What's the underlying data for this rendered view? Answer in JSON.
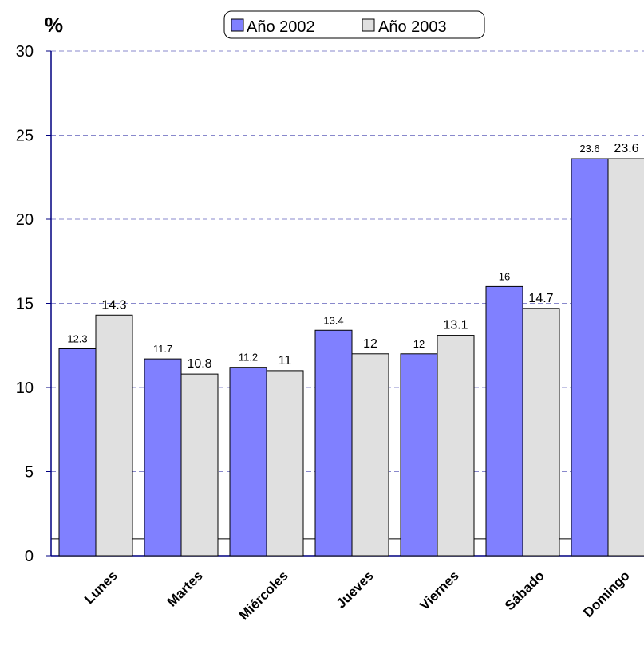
{
  "chart_data": {
    "type": "bar",
    "unit_label": "%",
    "categories": [
      "Lunes",
      "Martes",
      "Miércoles",
      "Jueves",
      "Viernes",
      "Sábado",
      "Domingo"
    ],
    "series": [
      {
        "name": "Año 2002",
        "color": "#8080ff",
        "values": [
          12.3,
          11.7,
          11.2,
          13.4,
          12,
          16,
          23.6
        ],
        "labels": [
          "12.3",
          "11.7",
          "11.2",
          "13.4",
          "12",
          "16",
          "23.6"
        ]
      },
      {
        "name": "Año 2003",
        "color": "#e0e0e0",
        "values": [
          14.3,
          10.8,
          11,
          12,
          13.1,
          14.7,
          23.6
        ],
        "labels": [
          "14.3",
          "10.8",
          "11",
          "12",
          "13.1",
          "14.7",
          "23.6"
        ]
      }
    ],
    "yticks": [
      "0",
      "5",
      "10",
      "15",
      "20",
      "25",
      "30"
    ],
    "ylim": [
      0,
      30
    ],
    "reference_line": 1,
    "grid": true,
    "legend_position": "top-center"
  }
}
